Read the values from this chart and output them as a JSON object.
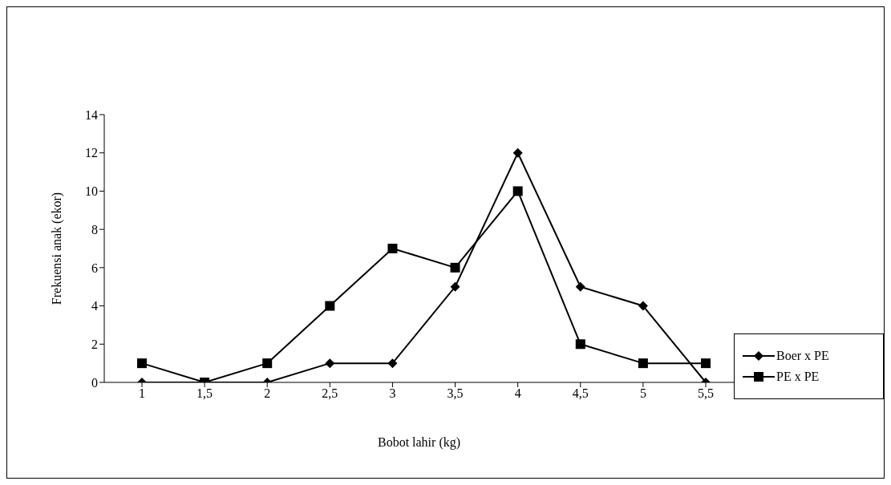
{
  "chart_data": {
    "type": "line",
    "xlabel": "Bobot lahir (kg)",
    "ylabel": "Frekuensi anak (ekor)",
    "categories": [
      "1",
      "1,5",
      "2",
      "2,5",
      "3",
      "3,5",
      "4",
      "4,5",
      "5",
      "5,5"
    ],
    "series": [
      {
        "name": "Boer x PE",
        "color": "#000000",
        "marker": "diamond",
        "values": [
          0,
          0,
          0,
          1,
          1,
          5,
          12,
          5,
          4,
          0
        ]
      },
      {
        "name": "PE x PE",
        "color": "#000000",
        "marker": "square",
        "values": [
          1,
          0,
          1,
          4,
          7,
          6,
          10,
          2,
          1,
          1
        ]
      }
    ],
    "ylim": [
      0,
      14
    ],
    "yticks": [
      0,
      2,
      4,
      6,
      8,
      10,
      12,
      14
    ],
    "grid": false,
    "legend": "right"
  }
}
